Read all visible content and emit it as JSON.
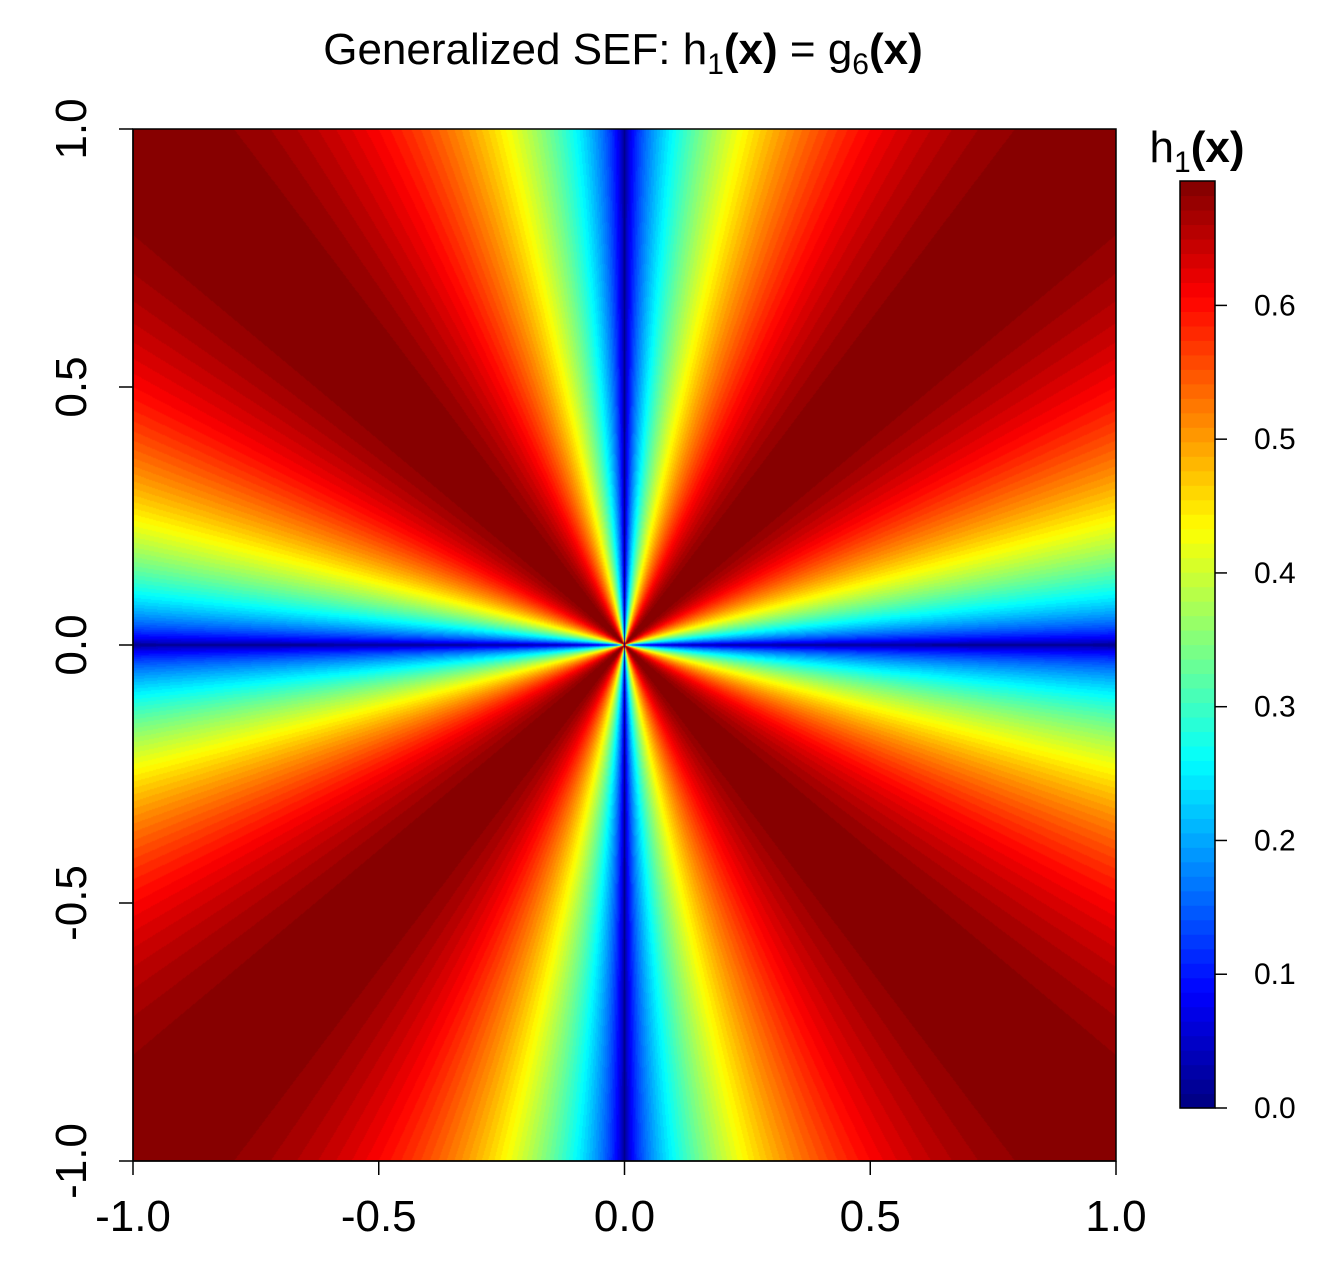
{
  "chart_data": {
    "type": "heatmap",
    "title_parts": [
      "Generalized SEF: h",
      "1",
      "(",
      "x",
      ")",
      " = g",
      "6",
      "(",
      "x",
      ")"
    ],
    "xlim": [
      -1.0,
      1.0
    ],
    "ylim": [
      -1.0,
      1.0
    ],
    "x_ticks": [
      -1.0,
      -0.5,
      0.0,
      0.5,
      1.0
    ],
    "y_ticks": [
      -1.0,
      -0.5,
      0.0,
      0.5,
      1.0
    ],
    "x_tick_labels": [
      "-1.0",
      "-0.5",
      "0.0",
      "0.5",
      "1.0"
    ],
    "y_tick_labels": [
      "-1.0",
      "-0.5",
      "0.0",
      "0.5",
      "1.0"
    ],
    "xlabel": "",
    "ylabel": "",
    "function_description": "value depends only on angle theta = atan2(y,x); h = 0.693*|sin(2*theta)|^0.6; zero along the x and y axes, maximum along the diagonals",
    "value_range": [
      0.0,
      0.693
    ],
    "colorbar": {
      "title_parts": [
        "h",
        "1",
        "(",
        "x",
        ")"
      ],
      "ticks": [
        0.0,
        0.1,
        0.2,
        0.3,
        0.4,
        0.5,
        0.6
      ],
      "tick_labels": [
        "0.0",
        "0.1",
        "0.2",
        "0.3",
        "0.4",
        "0.5",
        "0.6"
      ],
      "range": [
        0.0,
        0.693
      ]
    },
    "colormap": "jet",
    "colormap_stops": [
      {
        "t": 0.0,
        "color": "#00007F"
      },
      {
        "t": 0.125,
        "color": "#0000FF"
      },
      {
        "t": 0.375,
        "color": "#00FFFF"
      },
      {
        "t": 0.625,
        "color": "#FFFF00"
      },
      {
        "t": 0.875,
        "color": "#FF0000"
      },
      {
        "t": 1.0,
        "color": "#7F0000"
      }
    ],
    "levels": 64,
    "grid": false
  }
}
